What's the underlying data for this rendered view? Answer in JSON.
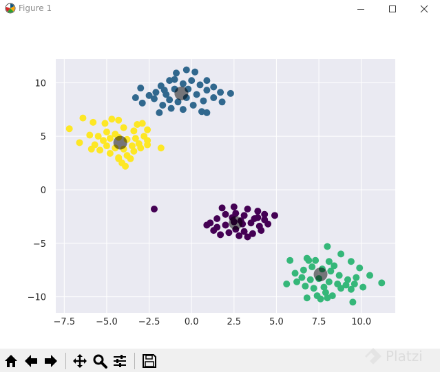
{
  "window": {
    "title": "Figure 1",
    "controls": {
      "minimize_icon": "minimize-icon",
      "maximize_icon": "maximize-icon",
      "close_icon": "close-icon"
    }
  },
  "toolbar": {
    "buttons": [
      {
        "name": "home",
        "icon": "home-icon"
      },
      {
        "name": "back",
        "icon": "arrow-left-icon"
      },
      {
        "name": "forward",
        "icon": "arrow-right-icon"
      },
      {
        "name": "pan",
        "icon": "move-icon"
      },
      {
        "name": "zoom",
        "icon": "magnifier-icon"
      },
      {
        "name": "configure-subplots",
        "icon": "sliders-icon"
      },
      {
        "name": "save",
        "icon": "floppy-disk-icon"
      }
    ]
  },
  "watermark": {
    "text": "Platzi"
  },
  "chart_data": {
    "type": "scatter",
    "title": "",
    "xlabel": "",
    "ylabel": "",
    "xlim": [
      -8.0,
      12.0
    ],
    "ylim": [
      -11.5,
      12.2
    ],
    "xticks": [
      -7.5,
      -5.0,
      -2.5,
      0.0,
      2.5,
      5.0,
      7.5,
      10.0
    ],
    "xtick_labels": [
      "−7.5",
      "−5.0",
      "−2.5",
      "0.0",
      "2.5",
      "5.0",
      "7.5",
      "10.0"
    ],
    "yticks": [
      -10,
      -5,
      0,
      5,
      10
    ],
    "ytick_labels": [
      "−10",
      "−5",
      "0",
      "5",
      "10"
    ],
    "grid": true,
    "background": "#eaeaf2",
    "grid_color": "#ffffff",
    "series": [
      {
        "color": "#31688e",
        "points": [
          [
            -0.9,
            10.9
          ],
          [
            -0.3,
            11.2
          ],
          [
            0.2,
            11.0
          ],
          [
            0.9,
            10.2
          ],
          [
            -1.3,
            10.2
          ],
          [
            -1.8,
            9.7
          ],
          [
            -2.1,
            9.1
          ],
          [
            -2.5,
            8.8
          ],
          [
            -2.2,
            8.5
          ],
          [
            -1.5,
            8.9
          ],
          [
            -1.0,
            9.4
          ],
          [
            -0.5,
            9.9
          ],
          [
            0.0,
            10.2
          ],
          [
            0.5,
            9.8
          ],
          [
            0.9,
            9.3
          ],
          [
            1.3,
            9.6
          ],
          [
            1.7,
            9.1
          ],
          [
            1.3,
            8.6
          ],
          [
            0.7,
            8.3
          ],
          [
            0.3,
            8.9
          ],
          [
            -0.3,
            8.6
          ],
          [
            -0.8,
            8.2
          ],
          [
            -1.3,
            8.4
          ],
          [
            -1.7,
            7.9
          ],
          [
            -1.2,
            7.6
          ],
          [
            -0.5,
            7.5
          ],
          [
            0.1,
            7.9
          ],
          [
            0.6,
            7.3
          ],
          [
            0.9,
            7.2
          ],
          [
            -1.9,
            7.2
          ],
          [
            -3.0,
            9.5
          ],
          [
            -3.3,
            8.6
          ],
          [
            -2.9,
            8.1
          ],
          [
            2.3,
            9.0
          ],
          [
            1.8,
            8.2
          ],
          [
            -0.2,
            9.4
          ],
          [
            -1.6,
            9.3
          ],
          [
            -1.0,
            10.3
          ]
        ]
      },
      {
        "color": "#fde725",
        "points": [
          [
            -7.2,
            5.7
          ],
          [
            -6.4,
            6.7
          ],
          [
            -5.8,
            6.3
          ],
          [
            -5.1,
            6.2
          ],
          [
            -4.7,
            6.6
          ],
          [
            -4.3,
            6.5
          ],
          [
            -3.2,
            6.1
          ],
          [
            -2.9,
            6.2
          ],
          [
            -2.6,
            5.6
          ],
          [
            -3.4,
            5.5
          ],
          [
            -4.0,
            5.8
          ],
          [
            -4.5,
            5.2
          ],
          [
            -5.0,
            5.4
          ],
          [
            -5.5,
            5.0
          ],
          [
            -6.0,
            5.1
          ],
          [
            -6.6,
            4.4
          ],
          [
            -5.7,
            4.2
          ],
          [
            -5.2,
            4.6
          ],
          [
            -4.8,
            4.8
          ],
          [
            -4.3,
            4.9
          ],
          [
            -3.8,
            4.7
          ],
          [
            -3.3,
            4.8
          ],
          [
            -2.8,
            5.0
          ],
          [
            -2.6,
            4.6
          ],
          [
            -2.6,
            4.2
          ],
          [
            -3.1,
            4.3
          ],
          [
            -3.5,
            4.1
          ],
          [
            -4.0,
            3.8
          ],
          [
            -4.5,
            3.9
          ],
          [
            -5.0,
            4.1
          ],
          [
            -5.4,
            3.7
          ],
          [
            -4.8,
            3.4
          ],
          [
            -4.3,
            3.0
          ],
          [
            -3.8,
            3.2
          ],
          [
            -3.4,
            3.6
          ],
          [
            -3.0,
            3.9
          ],
          [
            -1.8,
            3.9
          ],
          [
            -4.1,
            2.5
          ],
          [
            -3.9,
            2.2
          ],
          [
            -4.3,
            2.9
          ],
          [
            -3.6,
            2.9
          ],
          [
            -5.9,
            3.8
          ]
        ]
      },
      {
        "color": "#440154",
        "points": [
          [
            -2.2,
            -1.8
          ],
          [
            1.8,
            -1.7
          ],
          [
            2.5,
            -1.6
          ],
          [
            3.3,
            -1.8
          ],
          [
            3.9,
            -2.0
          ],
          [
            4.3,
            -2.3
          ],
          [
            4.9,
            -2.4
          ],
          [
            4.3,
            -2.8
          ],
          [
            3.7,
            -2.7
          ],
          [
            3.1,
            -2.4
          ],
          [
            2.6,
            -2.2
          ],
          [
            2.0,
            -2.3
          ],
          [
            1.5,
            -2.7
          ],
          [
            1.1,
            -3.1
          ],
          [
            1.5,
            -3.5
          ],
          [
            2.0,
            -3.3
          ],
          [
            2.5,
            -3.0
          ],
          [
            3.0,
            -3.2
          ],
          [
            3.5,
            -3.1
          ],
          [
            4.0,
            -3.4
          ],
          [
            4.5,
            -3.2
          ],
          [
            4.1,
            -3.8
          ],
          [
            3.6,
            -4.1
          ],
          [
            3.1,
            -3.9
          ],
          [
            2.6,
            -3.7
          ],
          [
            2.2,
            -4.0
          ],
          [
            1.7,
            -4.2
          ],
          [
            2.8,
            -4.3
          ],
          [
            3.3,
            -4.4
          ],
          [
            1.3,
            -3.8
          ],
          [
            0.9,
            -3.3
          ],
          [
            2.4,
            -2.6
          ],
          [
            3.9,
            -2.6
          ],
          [
            2.9,
            -2.9
          ]
        ]
      },
      {
        "color": "#35b779",
        "points": [
          [
            8.0,
            -5.3
          ],
          [
            8.8,
            -6.0
          ],
          [
            5.8,
            -6.6
          ],
          [
            6.8,
            -6.4
          ],
          [
            7.3,
            -6.6
          ],
          [
            8.1,
            -6.7
          ],
          [
            9.4,
            -6.7
          ],
          [
            9.9,
            -7.3
          ],
          [
            10.5,
            -8.0
          ],
          [
            9.7,
            -8.2
          ],
          [
            9.2,
            -8.4
          ],
          [
            8.7,
            -8.0
          ],
          [
            8.2,
            -7.6
          ],
          [
            7.7,
            -7.4
          ],
          [
            7.1,
            -7.2
          ],
          [
            6.6,
            -7.5
          ],
          [
            6.1,
            -7.8
          ],
          [
            6.5,
            -8.2
          ],
          [
            7.0,
            -8.4
          ],
          [
            7.5,
            -8.3
          ],
          [
            8.1,
            -8.6
          ],
          [
            8.6,
            -8.8
          ],
          [
            9.1,
            -8.9
          ],
          [
            9.6,
            -8.8
          ],
          [
            10.1,
            -9.1
          ],
          [
            9.4,
            -9.3
          ],
          [
            8.8,
            -9.2
          ],
          [
            7.8,
            -9.1
          ],
          [
            7.2,
            -9.2
          ],
          [
            6.7,
            -9.0
          ],
          [
            6.2,
            -8.6
          ],
          [
            5.6,
            -8.8
          ],
          [
            7.9,
            -9.6
          ],
          [
            7.4,
            -9.9
          ],
          [
            8.3,
            -9.9
          ],
          [
            7.6,
            -10.2
          ],
          [
            6.8,
            -10.1
          ],
          [
            8.0,
            -10.1
          ],
          [
            9.5,
            -10.5
          ],
          [
            11.2,
            -8.7
          ],
          [
            6.9,
            -6.6
          ],
          [
            8.4,
            -7.1
          ]
        ]
      }
    ],
    "centers": {
      "color": "#000000",
      "opacity": 0.5,
      "points": [
        [
          -0.6,
          9.0
        ],
        [
          -4.2,
          4.4
        ],
        [
          2.6,
          -3.1
        ],
        [
          7.6,
          -7.9
        ]
      ]
    }
  }
}
